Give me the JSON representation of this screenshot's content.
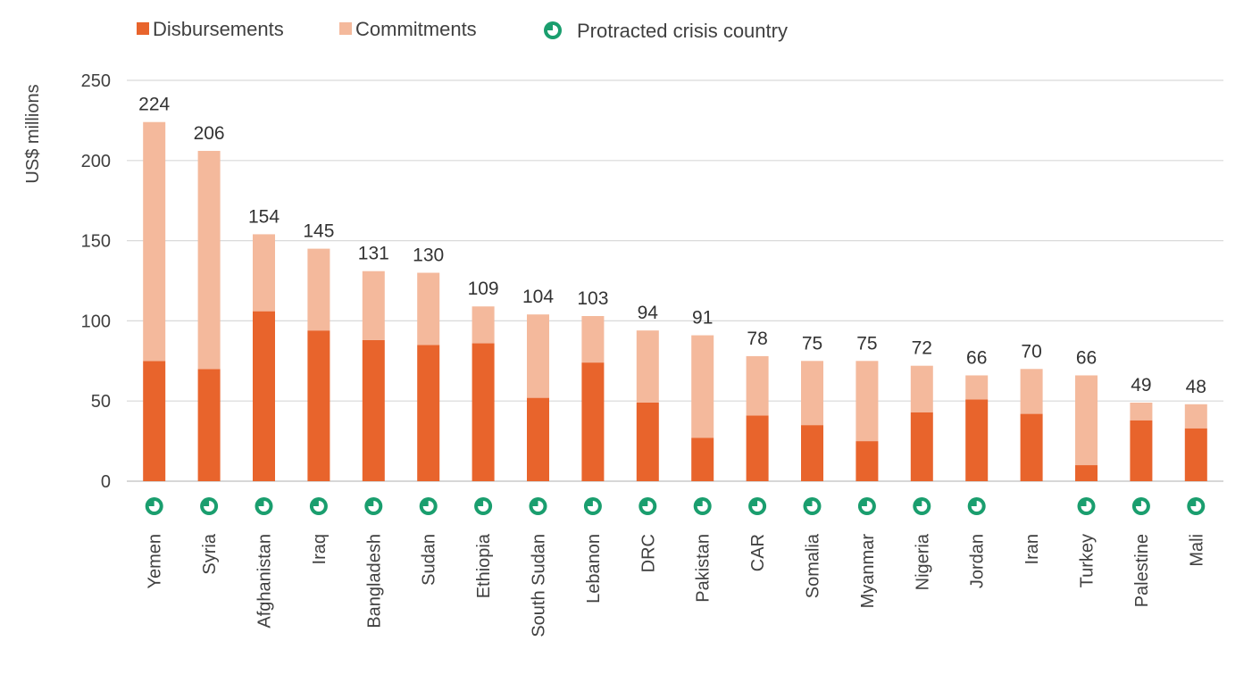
{
  "chart_data": {
    "type": "bar",
    "stacked": true,
    "ylabel": "US$ millions",
    "xlabel": "",
    "ylim": [
      0,
      250
    ],
    "yticks": [
      0,
      50,
      100,
      150,
      200,
      250
    ],
    "grid": true,
    "legend": {
      "placement": "top-left",
      "items": [
        {
          "label": "Disbursements",
          "symbol": "square",
          "color": "#e8642c"
        },
        {
          "label": "Commitments",
          "symbol": "square",
          "color": "#f4b99c"
        },
        {
          "label": "Protracted crisis country",
          "symbol": "pie-icon",
          "color": "#1a9e6e"
        }
      ]
    },
    "categories": [
      "Yemen",
      "Syria",
      "Afghanistan",
      "Iraq",
      "Bangladesh",
      "Sudan",
      "Ethiopia",
      "South Sudan",
      "Lebanon",
      "DRC",
      "Pakistan",
      "CAR",
      "Somalia",
      "Myanmar",
      "Nigeria",
      "Jordan",
      "Iran",
      "Turkey",
      "Palestine",
      "Mali"
    ],
    "series": [
      {
        "name": "Disbursements",
        "color": "#e8642c",
        "values": [
          75,
          70,
          106,
          94,
          88,
          85,
          86,
          52,
          74,
          49,
          27,
          41,
          35,
          25,
          43,
          51,
          42,
          10,
          38,
          33
        ]
      },
      {
        "name": "Commitments",
        "color": "#f4b99c",
        "values": [
          149,
          136,
          48,
          51,
          43,
          45,
          23,
          52,
          29,
          45,
          64,
          37,
          40,
          50,
          29,
          15,
          28,
          56,
          11,
          15
        ]
      }
    ],
    "totals": [
      224,
      206,
      154,
      145,
      131,
      130,
      109,
      104,
      103,
      94,
      91,
      78,
      75,
      75,
      72,
      66,
      70,
      66,
      49,
      48
    ],
    "protracted_crisis": [
      true,
      true,
      true,
      true,
      true,
      true,
      true,
      true,
      true,
      true,
      true,
      true,
      true,
      true,
      true,
      true,
      false,
      true,
      true,
      true
    ]
  }
}
